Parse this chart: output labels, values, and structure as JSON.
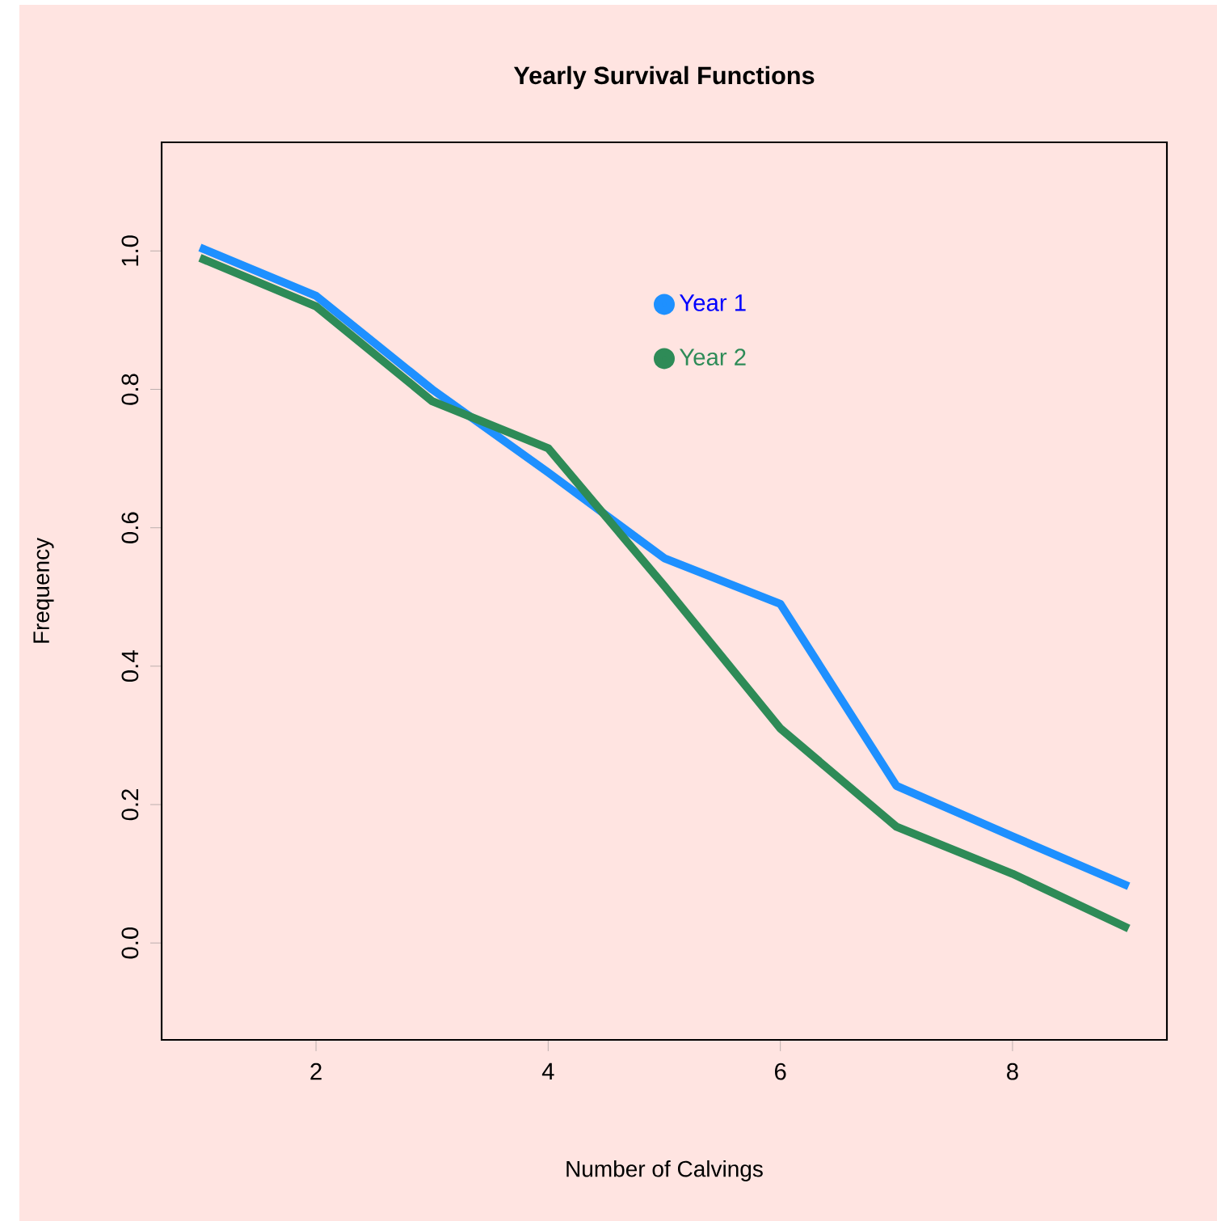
{
  "chart_data": {
    "type": "line",
    "title": "Yearly Survival Functions",
    "xlabel": "Number of Calvings",
    "ylabel": "Frequency",
    "x": [
      1,
      2,
      3,
      4,
      5,
      6,
      7,
      8,
      9
    ],
    "series": [
      {
        "name": "Year 1",
        "color": "#1e90ff",
        "values": [
          1.005,
          0.935,
          0.8,
          0.68,
          0.556,
          0.49,
          0.227,
          0.154,
          0.082
        ]
      },
      {
        "name": "Year 2",
        "color": "#2e8b57",
        "values": [
          0.99,
          0.92,
          0.783,
          0.715,
          0.516,
          0.31,
          0.168,
          0.1,
          0.021
        ]
      }
    ],
    "xlim": [
      0.67,
      9.33
    ],
    "ylim": [
      -0.14,
      1.157
    ],
    "xticks": [
      2,
      4,
      6,
      8
    ],
    "yticks": [
      {
        "value": 0,
        "label": "0.0"
      },
      {
        "value": 0.2,
        "label": "0.2"
      },
      {
        "value": 0.4,
        "label": "0.4"
      },
      {
        "value": 0.6,
        "label": "0.6"
      },
      {
        "value": 0.8,
        "label": "0.8"
      },
      {
        "value": 1,
        "label": "1.0"
      }
    ],
    "grid": false,
    "legend": "top",
    "marker": "none",
    "line_style": "solid"
  }
}
